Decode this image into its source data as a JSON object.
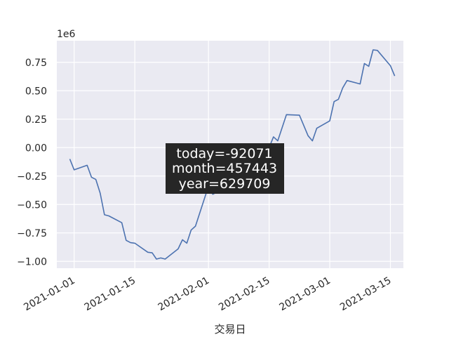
{
  "chart_data": {
    "type": "line",
    "xlabel": "交易日",
    "ylabel": "",
    "offset_label": "1e6",
    "colors": {
      "plot_bg": "#eaeaf2",
      "grid": "#ffffff",
      "line": "#4c72b0",
      "annotation_bg": "#262626"
    },
    "grid": true,
    "x_ticks": [
      "2021-01-01",
      "2021-01-15",
      "2021-02-01",
      "2021-02-15",
      "2021-03-01",
      "2021-03-15"
    ],
    "y_ticks": [
      "0.75",
      "0.50",
      "0.25",
      "0.00",
      "−0.25",
      "−0.50",
      "−0.75",
      "−1.00"
    ],
    "xlim": [
      "2020-12-28",
      "2021-03-18"
    ],
    "ylim": [
      -1060000,
      940000
    ],
    "annotation": {
      "lines": [
        "today=-92071",
        "month=457443",
        "year=629709"
      ]
    },
    "series": [
      {
        "x": [
          "2020-12-31",
          "2021-01-01",
          "2021-01-04",
          "2021-01-05",
          "2021-01-06",
          "2021-01-07",
          "2021-01-08",
          "2021-01-09",
          "2021-01-12",
          "2021-01-13",
          "2021-01-14",
          "2021-01-15",
          "2021-01-18",
          "2021-01-19",
          "2021-01-20",
          "2021-01-21",
          "2021-01-22",
          "2021-01-25",
          "2021-01-26",
          "2021-01-27",
          "2021-01-28",
          "2021-01-29",
          "2021-02-01",
          "2021-02-02",
          "2021-02-03",
          "2021-02-04",
          "2021-02-05",
          "2021-02-08",
          "2021-02-09",
          "2021-02-10",
          "2021-02-11",
          "2021-02-12",
          "2021-02-15",
          "2021-02-16",
          "2021-02-17",
          "2021-02-19",
          "2021-02-22",
          "2021-02-24",
          "2021-02-25",
          "2021-02-26",
          "2021-03-01",
          "2021-03-02",
          "2021-03-03",
          "2021-03-04",
          "2021-03-05",
          "2021-03-08",
          "2021-03-09",
          "2021-03-10",
          "2021-03-11",
          "2021-03-12",
          "2021-03-15",
          "2021-03-16"
        ],
        "values": [
          -100000,
          -195000,
          -155000,
          -260000,
          -280000,
          -400000,
          -590000,
          -600000,
          -660000,
          -815000,
          -835000,
          -840000,
          -920000,
          -925000,
          -980000,
          -970000,
          -980000,
          -890000,
          -810000,
          -840000,
          -725000,
          -690000,
          -340000,
          -410000,
          -390000,
          -110000,
          -60000,
          -10000,
          -60000,
          -20000,
          -30000,
          0,
          0,
          95000,
          60000,
          290000,
          285000,
          105000,
          60000,
          170000,
          235000,
          405000,
          425000,
          525000,
          590000,
          560000,
          740000,
          715000,
          860000,
          855000,
          720000,
          630000
        ]
      }
    ]
  }
}
